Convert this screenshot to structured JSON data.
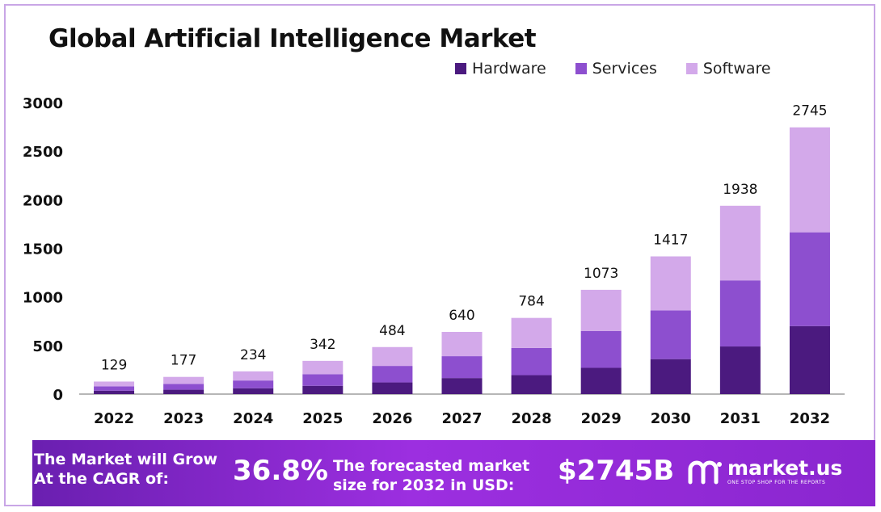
{
  "colors": {
    "hardware": "#4b1a7f",
    "services": "#8d4fcf",
    "software": "#d3a9ea",
    "axis": "#9e9e9e",
    "border": "#c9a6e6"
  },
  "chart_data": {
    "type": "bar",
    "stacked": true,
    "title": "Global Artificial Intelligence Market",
    "xlabel": "",
    "ylabel": "",
    "ylim": [
      0,
      3000
    ],
    "yticks": [
      0,
      500,
      1000,
      1500,
      2000,
      2500,
      3000
    ],
    "legend_position": "top-right",
    "grid": false,
    "categories": [
      "2022",
      "2023",
      "2024",
      "2025",
      "2026",
      "2027",
      "2028",
      "2029",
      "2030",
      "2031",
      "2032"
    ],
    "totals": [
      129,
      177,
      234,
      342,
      484,
      640,
      784,
      1073,
      1417,
      1938,
      2745
    ],
    "series": [
      {
        "name": "Hardware",
        "values": [
          35,
          45,
          60,
          85,
          120,
          165,
          195,
          270,
          360,
          490,
          700
        ]
      },
      {
        "name": "Services",
        "values": [
          45,
          60,
          80,
          120,
          170,
          225,
          280,
          380,
          500,
          680,
          965
        ]
      },
      {
        "name": "Software",
        "values": [
          49,
          72,
          94,
          137,
          194,
          250,
          309,
          423,
          557,
          768,
          1080
        ]
      }
    ]
  },
  "banner": {
    "cagr_label_line1": "The Market will Grow",
    "cagr_label_line2": "At the CAGR of:",
    "cagr_value": "36.8%",
    "forecast_label_line1": "The forecasted market",
    "forecast_label_line2": "size for 2032 in USD:",
    "forecast_value": "$2745B",
    "logo_text": "market.us",
    "logo_tagline": "ONE STOP SHOP FOR THE REPORTS"
  }
}
